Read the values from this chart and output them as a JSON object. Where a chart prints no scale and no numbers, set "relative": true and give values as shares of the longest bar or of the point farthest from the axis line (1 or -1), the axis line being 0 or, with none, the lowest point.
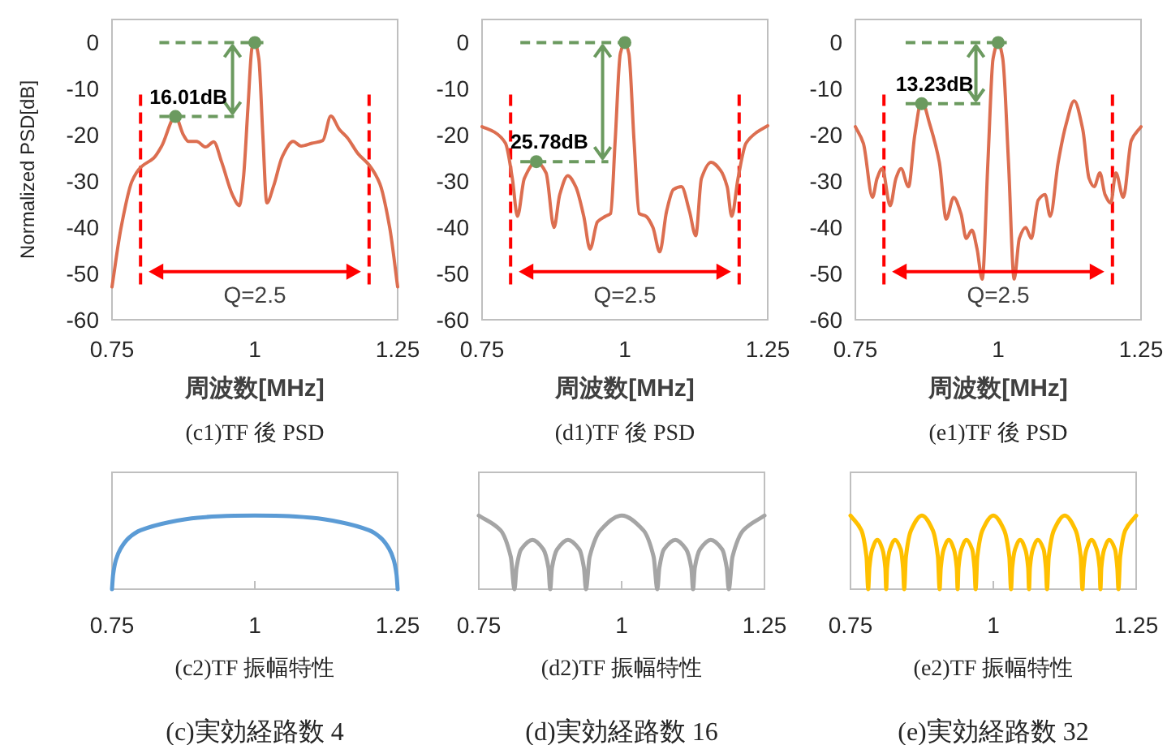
{
  "chart_data": [
    {
      "type": "line",
      "title": "(c1)TF 後 PSD",
      "xlabel": "周波数[MHz]",
      "ylabel": "Normalized PSD[dB]",
      "xlim": [
        0.75,
        1.25
      ],
      "xticks": [
        0.75,
        1,
        1.25
      ],
      "ylim": [
        -60,
        5
      ],
      "yticks": [
        -60,
        -50,
        -40,
        -30,
        -20,
        -10,
        0
      ],
      "grid": false,
      "series": [
        {
          "color": "#dc6e50",
          "x": [
            0.75,
            0.766,
            0.785,
            0.801,
            0.823,
            0.837,
            0.861,
            0.875,
            0.884,
            0.898,
            0.914,
            0.928,
            0.942,
            0.961,
            0.973,
            0.98,
            0.988,
            0.995,
            1.0,
            1.007,
            1.014,
            1.021,
            1.033,
            1.048,
            1.067,
            1.081,
            1.1,
            1.119,
            1.133,
            1.148,
            1.162,
            1.181,
            1.2,
            1.219,
            1.236,
            1.25
          ],
          "values": [
            -52.9,
            -40,
            -30,
            -26.9,
            -25,
            -22.4,
            -16,
            -20,
            -21.4,
            -21.4,
            -22.6,
            -21.5,
            -25.9,
            -33,
            -35.3,
            -29.4,
            -14,
            -1.2,
            0,
            -3.5,
            -20,
            -34.7,
            -31,
            -24.7,
            -21.4,
            -22.4,
            -21.8,
            -21.2,
            -15.9,
            -18.8,
            -20.6,
            -24.1,
            -26.5,
            -30.6,
            -40,
            -52.9
          ]
        },
        {
          "type": "scatter",
          "color": "#6b9a5f",
          "x": [
            0.861,
            1.0
          ],
          "values": [
            -16.01,
            0
          ]
        }
      ],
      "ref_lines": [
        {
          "axis": "x",
          "value": 0.8,
          "color": "#ff0000",
          "line_style": "dashed"
        },
        {
          "axis": "x",
          "value": 1.2,
          "color": "#ff0000",
          "line_style": "dashed"
        }
      ],
      "annotations": [
        {
          "text": "16.01dB",
          "x": 0.861,
          "y": -16.01
        },
        "Q=2.5"
      ]
    },
    {
      "type": "line",
      "title": "(d1)TF 後 PSD",
      "xlabel": "周波数[MHz]",
      "xlim": [
        0.75,
        1.25
      ],
      "xticks": [
        0.75,
        1,
        1.25
      ],
      "ylim": [
        -60,
        5
      ],
      "yticks": [
        -60,
        -50,
        -40,
        -30,
        -20,
        -10,
        0
      ],
      "grid": false,
      "series": [
        {
          "color": "#dc6e50",
          "x": [
            0.75,
            0.772,
            0.791,
            0.803,
            0.812,
            0.824,
            0.845,
            0.862,
            0.876,
            0.886,
            0.9,
            0.914,
            0.928,
            0.939,
            0.952,
            0.966,
            0.975,
            0.983,
            0.992,
            1.0,
            1.007,
            1.016,
            1.025,
            1.037,
            1.049,
            1.061,
            1.073,
            1.085,
            1.099,
            1.113,
            1.124,
            1.134,
            1.151,
            1.167,
            1.179,
            1.187,
            1.198,
            1.212,
            1.231,
            1.25
          ],
          "values": [
            -18.2,
            -19.4,
            -21.8,
            -29.4,
            -37.6,
            -29.4,
            -25.8,
            -28.2,
            -40,
            -32.9,
            -28.8,
            -31.2,
            -37.6,
            -44.7,
            -38.8,
            -37.6,
            -37,
            -21.2,
            -2.4,
            0,
            -2.4,
            -21.2,
            -37,
            -37.6,
            -40,
            -45.3,
            -36.5,
            -31.8,
            -31.2,
            -36.5,
            -41.8,
            -29.4,
            -25.9,
            -27.6,
            -31.2,
            -37.6,
            -29.4,
            -21.8,
            -19.4,
            -18
          ]
        },
        {
          "type": "scatter",
          "color": "#6b9a5f",
          "x": [
            0.845,
            1.0
          ],
          "values": [
            -25.78,
            0
          ]
        }
      ],
      "ref_lines": [
        {
          "axis": "x",
          "value": 0.8,
          "color": "#ff0000",
          "line_style": "dashed"
        },
        {
          "axis": "x",
          "value": 1.2,
          "color": "#ff0000",
          "line_style": "dashed"
        }
      ],
      "annotations": [
        {
          "text": "25.78dB",
          "x": 0.845,
          "y": -25.78
        },
        "Q=2.5"
      ]
    },
    {
      "type": "line",
      "title": "(e1)TF 後 PSD",
      "xlabel": "周波数[MHz]",
      "xlim": [
        0.75,
        1.25
      ],
      "xticks": [
        0.75,
        1,
        1.25
      ],
      "ylim": [
        -60,
        5
      ],
      "yticks": [
        -60,
        -50,
        -40,
        -30,
        -20,
        -10,
        0
      ],
      "grid": false,
      "series": [
        {
          "color": "#dc6e50",
          "x": [
            0.75,
            0.764,
            0.78,
            0.788,
            0.797,
            0.811,
            0.821,
            0.83,
            0.843,
            0.854,
            0.866,
            0.88,
            0.897,
            0.909,
            0.922,
            0.935,
            0.944,
            0.954,
            0.963,
            0.972,
            0.982,
            0.991,
            1.0,
            1.008,
            1.018,
            1.028,
            1.037,
            1.048,
            1.058,
            1.07,
            1.082,
            1.091,
            1.105,
            1.119,
            1.133,
            1.148,
            1.159,
            1.168,
            1.178,
            1.187,
            1.197,
            1.206,
            1.219,
            1.233,
            1.25
          ],
          "values": [
            -18.2,
            -21.8,
            -33.5,
            -29.4,
            -27.3,
            -35.3,
            -29.4,
            -27.3,
            -31.2,
            -20,
            -12.6,
            -17.6,
            -25.9,
            -38.2,
            -33.5,
            -37.1,
            -42.4,
            -40.6,
            -44.7,
            -51.2,
            -25.9,
            -3.5,
            0,
            -3.5,
            -25.9,
            -51.2,
            -42.4,
            -40,
            -42.4,
            -34.1,
            -32.9,
            -37.6,
            -25.9,
            -17.6,
            -12.6,
            -18.8,
            -29.4,
            -31.2,
            -28.2,
            -32.9,
            -34.7,
            -28.2,
            -33.5,
            -21.2,
            -18.2
          ]
        },
        {
          "type": "scatter",
          "color": "#6b9a5f",
          "x": [
            0.866,
            1.0
          ],
          "values": [
            -13.23,
            0
          ]
        }
      ],
      "ref_lines": [
        {
          "axis": "x",
          "value": 0.8,
          "color": "#ff0000",
          "line_style": "dashed"
        },
        {
          "axis": "x",
          "value": 1.2,
          "color": "#ff0000",
          "line_style": "dashed"
        }
      ],
      "annotations": [
        {
          "text": "13.23dB",
          "x": 0.866,
          "y": -13.23
        },
        "Q=2.5"
      ]
    },
    {
      "type": "line",
      "title": "(c2)TF 振幅特性",
      "relative": true,
      "tick_labels": "x",
      "xlim": [
        0.75,
        1.25
      ],
      "xticks": [
        0.75,
        1,
        1.25
      ],
      "grid": false,
      "series": [
        {
          "color": "#5b9bd5",
          "x": [
            0.75,
            0.752,
            0.757,
            0.765,
            0.78,
            0.8,
            0.85,
            0.9,
            0.95,
            1.0,
            1.05,
            1.1,
            1.15,
            1.2,
            1.22,
            1.235,
            1.243,
            1.248,
            1.25
          ],
          "values": [
            0,
            0.2,
            0.4,
            0.55,
            0.7,
            0.8,
            0.91,
            0.97,
            0.995,
            1,
            0.995,
            0.97,
            0.91,
            0.8,
            0.7,
            0.55,
            0.4,
            0.2,
            0
          ]
        }
      ],
      "annotations": [
        "(c)実効経路数 4"
      ]
    },
    {
      "type": "line",
      "title": "(d2)TF 振幅特性",
      "relative": true,
      "tick_labels": "x",
      "xlim": [
        0.75,
        1.25
      ],
      "xticks": [
        0.75,
        1,
        1.25
      ],
      "grid": false,
      "series": [
        {
          "color": "#a5a5a5",
          "x": [
            0.75,
            0.788,
            0.806,
            0.8125,
            0.816,
            0.824,
            0.844,
            0.863,
            0.872,
            0.875,
            0.878,
            0.887,
            0.906,
            0.926,
            0.934,
            0.9375,
            0.944,
            0.963,
            1.0,
            1.038,
            1.056,
            1.0625,
            1.066,
            1.074,
            1.094,
            1.113,
            1.122,
            1.125,
            1.128,
            1.137,
            1.156,
            1.176,
            1.184,
            1.1875,
            1.194,
            1.213,
            1.25
          ],
          "values": [
            1,
            0.8,
            0.44,
            0,
            0.29,
            0.54,
            0.67,
            0.54,
            0.29,
            0,
            0.29,
            0.54,
            0.67,
            0.54,
            0.29,
            0,
            0.44,
            0.8,
            1,
            0.8,
            0.44,
            0,
            0.29,
            0.54,
            0.67,
            0.54,
            0.29,
            0,
            0.29,
            0.54,
            0.67,
            0.54,
            0.29,
            0,
            0.44,
            0.8,
            1
          ]
        }
      ],
      "annotations": [
        "(d)実効経路数 16"
      ]
    },
    {
      "type": "line",
      "title": "(e2)TF 振幅特性",
      "relative": true,
      "tick_labels": "x",
      "xlim": [
        0.75,
        1.25
      ],
      "xticks": [
        0.75,
        1,
        1.25
      ],
      "grid": false,
      "series": [
        {
          "color": "#ffc000",
          "x": [
            0.75,
            0.769,
            0.778,
            0.781,
            0.783,
            0.788,
            0.797,
            0.806,
            0.811,
            0.8125,
            0.814,
            0.819,
            0.828,
            0.838,
            0.842,
            0.844,
            0.847,
            0.856,
            0.875,
            0.894,
            0.903,
            0.906,
            0.908,
            0.913,
            0.922,
            0.931,
            0.936,
            0.9375,
            0.939,
            0.944,
            0.953,
            0.963,
            0.967,
            0.969,
            0.972,
            0.981,
            1.0,
            1.019,
            1.028,
            1.031,
            1.033,
            1.038,
            1.047,
            1.056,
            1.061,
            1.0625,
            1.064,
            1.069,
            1.078,
            1.088,
            1.092,
            1.094,
            1.097,
            1.106,
            1.125,
            1.144,
            1.153,
            1.156,
            1.158,
            1.163,
            1.172,
            1.181,
            1.186,
            1.1875,
            1.189,
            1.194,
            1.203,
            1.213,
            1.217,
            1.219,
            1.222,
            1.231,
            1.25
          ],
          "values": [
            1,
            0.8,
            0.44,
            0,
            0.29,
            0.54,
            0.67,
            0.54,
            0.29,
            0,
            0.29,
            0.54,
            0.67,
            0.54,
            0.29,
            0,
            0.44,
            0.8,
            1,
            0.8,
            0.44,
            0,
            0.29,
            0.54,
            0.67,
            0.54,
            0.29,
            0,
            0.29,
            0.54,
            0.67,
            0.54,
            0.29,
            0,
            0.44,
            0.8,
            1,
            0.8,
            0.44,
            0,
            0.29,
            0.54,
            0.67,
            0.54,
            0.29,
            0,
            0.29,
            0.54,
            0.67,
            0.54,
            0.29,
            0,
            0.44,
            0.8,
            1,
            0.8,
            0.44,
            0,
            0.29,
            0.54,
            0.67,
            0.54,
            0.29,
            0,
            0.29,
            0.54,
            0.67,
            0.54,
            0.29,
            0,
            0.44,
            0.8,
            1
          ]
        }
      ],
      "annotations": [
        "(e)実効経路数 32"
      ]
    }
  ]
}
